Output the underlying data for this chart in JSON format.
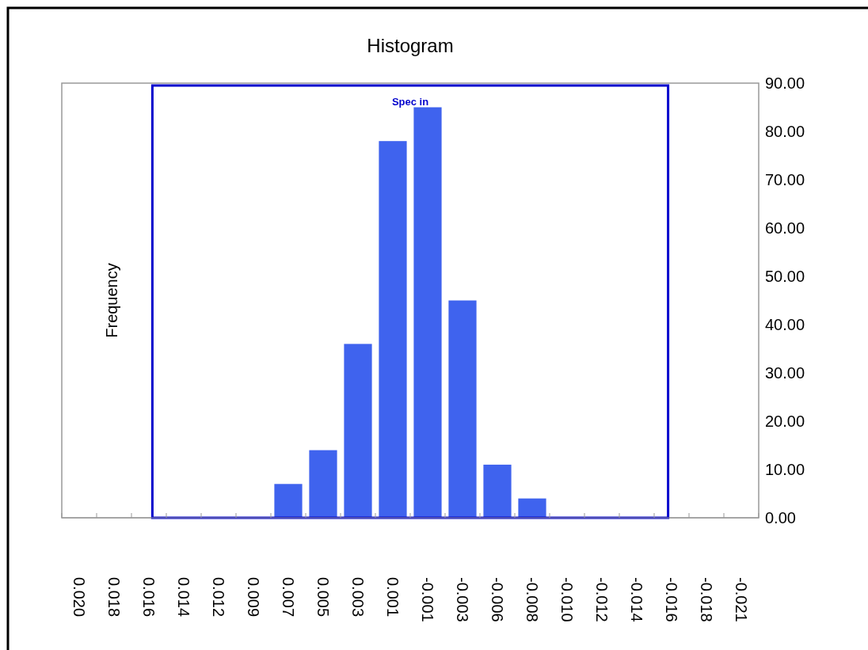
{
  "chart_data": {
    "type": "bar",
    "title": "Histogram",
    "ylabel": "Frequency",
    "categories": [
      "0.020",
      "0.018",
      "0.016",
      "0.014",
      "0.012",
      "0.009",
      "0.007",
      "0.005",
      "0.003",
      "0.001",
      "-0.001",
      "-0.003",
      "-0.006",
      "-0.008",
      "-0.010",
      "-0.012",
      "-0.014",
      "-0.016",
      "-0.018",
      "-0.021"
    ],
    "values": [
      0,
      0,
      0,
      0,
      0,
      0,
      7,
      14,
      36,
      78,
      85,
      45,
      11,
      4,
      0,
      0,
      0,
      0,
      0,
      0
    ],
    "color": "#3f63ee",
    "ylim": [
      0,
      90
    ],
    "yticks": [
      {
        "value": 0,
        "label": "0.00"
      },
      {
        "value": 10,
        "label": "10.00"
      },
      {
        "value": 20,
        "label": "20.00"
      },
      {
        "value": 30,
        "label": "30.00"
      },
      {
        "value": 40,
        "label": "40.00"
      },
      {
        "value": 50,
        "label": "50.00"
      },
      {
        "value": 60,
        "label": "60.00"
      },
      {
        "value": 70,
        "label": "70.00"
      },
      {
        "value": 80,
        "label": "80.00"
      },
      {
        "value": 90,
        "label": "90.00"
      }
    ],
    "annotations": [
      "Spec in"
    ]
  }
}
